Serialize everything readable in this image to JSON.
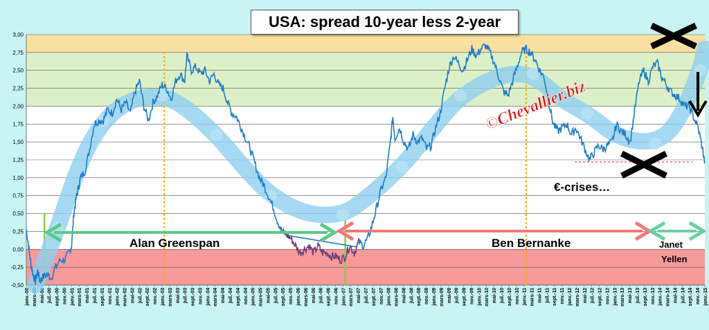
{
  "chart_data": {
    "type": "line",
    "title": "USA: spread 10-year less 2-year",
    "xlabel": "",
    "ylabel": "",
    "ylim": [
      -0.5,
      3.0
    ],
    "yticks": [
      "-0,50",
      "-0,25",
      "0,00",
      "0,25",
      "0,50",
      "0,75",
      "1,00",
      "1,25",
      "1,50",
      "1,75",
      "2,00",
      "2,25",
      "2,50",
      "2,75",
      "3,00"
    ],
    "x_start": "janv.-00",
    "x_end": "janv.-15",
    "xticks": [
      "janv.-00",
      "mars-00",
      "mai-00",
      "juil.-00",
      "sept.-00",
      "nov.-00",
      "janv.-01",
      "mars-01",
      "mai-01",
      "juil.-01",
      "sept.-01",
      "nov.-01",
      "janv.-02",
      "mars-02",
      "mai-02",
      "juil.-02",
      "sept.-02",
      "nov.-02",
      "janv.-03",
      "mars-03",
      "mai-03",
      "juil.-03",
      "sept.-03",
      "nov.-03",
      "janv.-04",
      "mars-04",
      "mai-04",
      "juil.-04",
      "sept.-04",
      "nov.-04",
      "janv.-05",
      "mars-05",
      "mai-05",
      "juil.-05",
      "sept.-05",
      "nov.-05",
      "janv.-06",
      "mars-06",
      "mai-06",
      "juil.-06",
      "sept.-06",
      "nov.-06",
      "janv.-07",
      "mars-07",
      "mai-07",
      "juil.-07",
      "sept.-07",
      "nov.-07",
      "janv.-08",
      "mars-08",
      "mai-08",
      "juil.-08",
      "sept.-08",
      "nov.-08",
      "janv.-09",
      "mars-09",
      "mai-09",
      "juil.-09",
      "sept.-09",
      "nov.-09",
      "janv.-10",
      "mars-10",
      "mai-10",
      "juil.-10",
      "sept.-10",
      "nov.-10",
      "janv.-11",
      "mars-11",
      "mai-11",
      "juil.-11",
      "sept.-11",
      "nov.-11",
      "janv.-12",
      "mars-12",
      "mai-12",
      "juil.-12",
      "sept.-12",
      "nov.-12",
      "janv.-13",
      "mars-13",
      "mai-13",
      "juil.-13",
      "sept.-13",
      "nov.-13",
      "janv.-14",
      "mars-14",
      "mai-14",
      "juil.-14",
      "sept.-14",
      "nov.-14",
      "janv.-15"
    ],
    "bands": [
      {
        "from": 2.75,
        "to": 3.0,
        "color": "#fae0a0"
      },
      {
        "from": 2.0,
        "to": 2.75,
        "color": "#dcf0c8"
      },
      {
        "from": 0.0,
        "to": 2.0,
        "color": "#ffffff"
      },
      {
        "from": -0.5,
        "to": 0.0,
        "color": "#f79a9a"
      }
    ],
    "series_color": "#1e7bc8",
    "series_low_color": "#6a3f7a",
    "trend_color": "#8fd0f0",
    "series": [
      {
        "points": [
          [
            2000.0,
            0.28
          ],
          [
            2000.05,
            0.05
          ],
          [
            2000.1,
            -0.2
          ],
          [
            2000.15,
            -0.35
          ],
          [
            2000.2,
            -0.45
          ],
          [
            2000.25,
            -0.3
          ],
          [
            2000.3,
            -0.45
          ],
          [
            2000.35,
            -0.4
          ],
          [
            2000.45,
            -0.35
          ],
          [
            2000.55,
            -0.4
          ],
          [
            2000.65,
            -0.25
          ],
          [
            2000.75,
            -0.15
          ],
          [
            2000.85,
            -0.15
          ],
          [
            2000.95,
            -0.05
          ],
          [
            2001.0,
            0.05
          ],
          [
            2001.05,
            0.5
          ],
          [
            2001.1,
            0.7
          ],
          [
            2001.15,
            0.85
          ],
          [
            2001.2,
            1.0
          ],
          [
            2001.3,
            1.1
          ],
          [
            2001.4,
            1.4
          ],
          [
            2001.5,
            1.75
          ],
          [
            2001.6,
            1.8
          ],
          [
            2001.7,
            1.8
          ],
          [
            2001.8,
            1.95
          ],
          [
            2001.9,
            1.9
          ],
          [
            2002.0,
            2.1
          ],
          [
            2002.1,
            1.95
          ],
          [
            2002.2,
            2.05
          ],
          [
            2002.3,
            1.9
          ],
          [
            2002.4,
            2.2
          ],
          [
            2002.5,
            2.35
          ],
          [
            2002.6,
            2.0
          ],
          [
            2002.7,
            1.8
          ],
          [
            2002.8,
            2.05
          ],
          [
            2002.9,
            2.15
          ],
          [
            2003.0,
            2.3
          ],
          [
            2003.1,
            2.25
          ],
          [
            2003.2,
            2.1
          ],
          [
            2003.3,
            2.35
          ],
          [
            2003.4,
            2.45
          ],
          [
            2003.5,
            2.35
          ],
          [
            2003.55,
            2.7
          ],
          [
            2003.65,
            2.5
          ],
          [
            2003.75,
            2.55
          ],
          [
            2003.85,
            2.45
          ],
          [
            2003.95,
            2.5
          ],
          [
            2004.05,
            2.35
          ],
          [
            2004.15,
            2.45
          ],
          [
            2004.25,
            2.3
          ],
          [
            2004.35,
            2.25
          ],
          [
            2004.45,
            2.05
          ],
          [
            2004.55,
            1.9
          ],
          [
            2004.65,
            1.85
          ],
          [
            2004.75,
            1.7
          ],
          [
            2004.85,
            1.55
          ],
          [
            2004.95,
            1.4
          ],
          [
            2005.05,
            1.2
          ],
          [
            2005.15,
            1.0
          ],
          [
            2005.25,
            0.9
          ],
          [
            2005.35,
            0.75
          ],
          [
            2005.45,
            0.6
          ],
          [
            2005.55,
            0.4
          ],
          [
            2005.65,
            0.25
          ],
          [
            2005.75,
            0.2
          ],
          [
            2005.85,
            0.15
          ],
          [
            2005.95,
            0.05
          ],
          [
            2006.05,
            -0.05
          ],
          [
            2006.15,
            0.0
          ],
          [
            2006.25,
            0.05
          ],
          [
            2006.35,
            -0.05
          ],
          [
            2006.45,
            0.05
          ],
          [
            2006.55,
            -0.05
          ],
          [
            2006.65,
            -0.05
          ],
          [
            2006.75,
            -0.1
          ],
          [
            2006.85,
            -0.1
          ],
          [
            2006.95,
            -0.15
          ],
          [
            2007.05,
            -0.1
          ],
          [
            2007.15,
            0.05
          ],
          [
            2007.25,
            -0.05
          ],
          [
            2007.35,
            0.1
          ],
          [
            2007.45,
            0.05
          ],
          [
            2007.55,
            0.15
          ],
          [
            2007.65,
            0.35
          ],
          [
            2007.75,
            0.6
          ],
          [
            2007.85,
            0.85
          ],
          [
            2007.95,
            1.0
          ],
          [
            2008.05,
            1.5
          ],
          [
            2008.1,
            1.85
          ],
          [
            2008.15,
            1.55
          ],
          [
            2008.25,
            1.7
          ],
          [
            2008.35,
            1.5
          ],
          [
            2008.45,
            1.4
          ],
          [
            2008.55,
            1.6
          ],
          [
            2008.65,
            1.5
          ],
          [
            2008.75,
            1.55
          ],
          [
            2008.85,
            1.4
          ],
          [
            2008.95,
            1.45
          ],
          [
            2009.05,
            1.7
          ],
          [
            2009.15,
            1.9
          ],
          [
            2009.25,
            2.25
          ],
          [
            2009.35,
            2.55
          ],
          [
            2009.45,
            2.7
          ],
          [
            2009.55,
            2.6
          ],
          [
            2009.65,
            2.5
          ],
          [
            2009.75,
            2.65
          ],
          [
            2009.85,
            2.8
          ],
          [
            2009.95,
            2.7
          ],
          [
            2010.05,
            2.8
          ],
          [
            2010.15,
            2.85
          ],
          [
            2010.25,
            2.75
          ],
          [
            2010.35,
            2.6
          ],
          [
            2010.45,
            2.4
          ],
          [
            2010.55,
            2.2
          ],
          [
            2010.65,
            2.15
          ],
          [
            2010.75,
            2.35
          ],
          [
            2010.85,
            2.55
          ],
          [
            2010.95,
            2.75
          ],
          [
            2011.05,
            2.8
          ],
          [
            2011.15,
            2.75
          ],
          [
            2011.25,
            2.65
          ],
          [
            2011.35,
            2.5
          ],
          [
            2011.45,
            2.4
          ],
          [
            2011.55,
            2.05
          ],
          [
            2011.65,
            1.75
          ],
          [
            2011.75,
            1.65
          ],
          [
            2011.85,
            1.7
          ],
          [
            2011.95,
            1.75
          ],
          [
            2012.05,
            1.6
          ],
          [
            2012.15,
            1.7
          ],
          [
            2012.25,
            1.55
          ],
          [
            2012.35,
            1.4
          ],
          [
            2012.45,
            1.25
          ],
          [
            2012.55,
            1.35
          ],
          [
            2012.65,
            1.45
          ],
          [
            2012.75,
            1.4
          ],
          [
            2012.85,
            1.45
          ],
          [
            2012.95,
            1.5
          ],
          [
            2013.05,
            1.75
          ],
          [
            2013.15,
            1.65
          ],
          [
            2013.25,
            1.6
          ],
          [
            2013.35,
            1.5
          ],
          [
            2013.45,
            1.95
          ],
          [
            2013.55,
            2.35
          ],
          [
            2013.65,
            2.5
          ],
          [
            2013.75,
            2.35
          ],
          [
            2013.85,
            2.55
          ],
          [
            2013.95,
            2.6
          ],
          [
            2014.05,
            2.4
          ],
          [
            2014.15,
            2.3
          ],
          [
            2014.25,
            2.2
          ],
          [
            2014.35,
            2.15
          ],
          [
            2014.45,
            2.1
          ],
          [
            2014.55,
            2.0
          ],
          [
            2014.65,
            2.0
          ],
          [
            2014.75,
            1.85
          ],
          [
            2014.85,
            1.7
          ],
          [
            2014.95,
            1.4
          ],
          [
            2015.0,
            1.2
          ]
        ]
      }
    ],
    "trend": [
      [
        2000.2,
        -0.5
      ],
      [
        2000.7,
        0.3
      ],
      [
        2001.2,
        1.25
      ],
      [
        2001.7,
        1.8
      ],
      [
        2002.3,
        2.1
      ],
      [
        2003.0,
        2.15
      ],
      [
        2003.5,
        2.0
      ],
      [
        2004.2,
        1.6
      ],
      [
        2004.8,
        1.15
      ],
      [
        2005.4,
        0.75
      ],
      [
        2006.2,
        0.48
      ],
      [
        2007.0,
        0.48
      ],
      [
        2007.5,
        0.7
      ],
      [
        2008.3,
        1.15
      ],
      [
        2009.0,
        1.7
      ],
      [
        2009.6,
        2.15
      ],
      [
        2010.5,
        2.45
      ],
      [
        2011.2,
        2.45
      ],
      [
        2011.8,
        2.1
      ],
      [
        2012.4,
        1.9
      ],
      [
        2013.1,
        1.55
      ],
      [
        2013.9,
        1.48
      ],
      [
        2014.4,
        1.75
      ],
      [
        2014.9,
        2.5
      ],
      [
        2015.0,
        2.8
      ]
    ],
    "vlines_orange": [
      2003.05,
      2011.05
    ],
    "vlines_green": [
      2000.4,
      2007.05
    ],
    "annotations": {
      "greenspan": "Alan  Greenspan",
      "bernanke": "Ben  Bernanke",
      "yellen_1": "Janet",
      "yellen_2": "Yellen",
      "ecrisis": "€-crises…",
      "watermark": "©Chevallier.biz"
    }
  }
}
